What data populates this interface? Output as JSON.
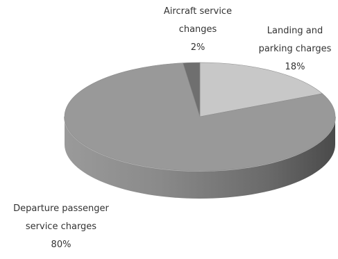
{
  "chart_data": {
    "type": "pie",
    "style": "3d",
    "slices": [
      {
        "label_lines": [
          "Landing and",
          "parking charges"
        ],
        "value": 18,
        "value_label": "18%",
        "color": "#c8c8c8"
      },
      {
        "label_lines": [
          "Departure passenger",
          "service charges"
        ],
        "value": 80,
        "value_label": "80%",
        "color": "#999999"
      },
      {
        "label_lines": [
          "Aircraft service",
          "changes"
        ],
        "value": 2,
        "value_label": "2%",
        "color": "#6f6f6f"
      }
    ],
    "start_angle": "12 o'clock, clockwise",
    "legend": "none",
    "side_color": "#777777"
  }
}
